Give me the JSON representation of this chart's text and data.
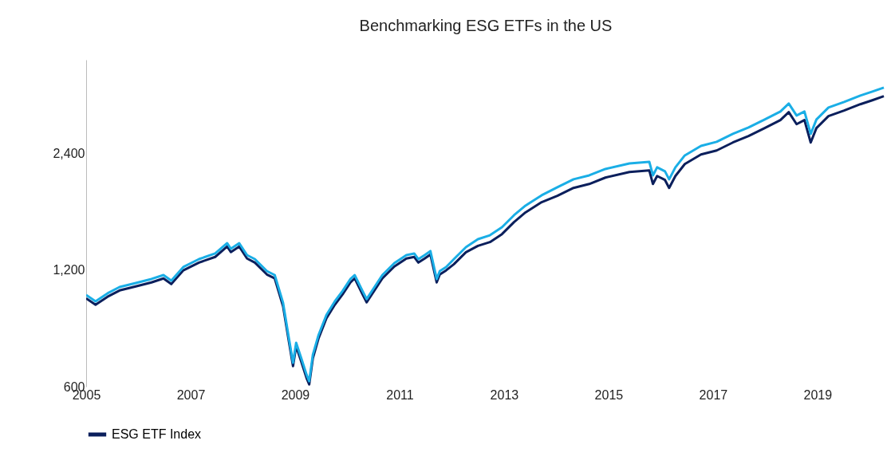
{
  "chart_data": {
    "type": "line",
    "title": "Benchmarking ESG ETFs in the US",
    "x": [
      2005.0,
      2005.18,
      2005.41,
      2005.64,
      2005.95,
      2006.25,
      2006.48,
      2006.63,
      2006.86,
      2007.16,
      2007.47,
      2007.7,
      2007.77,
      2007.93,
      2008.08,
      2008.23,
      2008.46,
      2008.61,
      2008.77,
      2008.87,
      2008.96,
      2009.02,
      2009.12,
      2009.22,
      2009.27,
      2009.34,
      2009.45,
      2009.6,
      2009.76,
      2009.91,
      2010.06,
      2010.14,
      2010.29,
      2010.37,
      2010.52,
      2010.67,
      2010.9,
      2011.13,
      2011.28,
      2011.36,
      2011.48,
      2011.59,
      2011.71,
      2011.77,
      2011.89,
      2012.04,
      2012.27,
      2012.5,
      2012.73,
      2012.96,
      2013.19,
      2013.41,
      2013.72,
      2014.02,
      2014.33,
      2014.63,
      2014.94,
      2015.4,
      2015.78,
      2015.85,
      2015.93,
      2016.08,
      2016.16,
      2016.28,
      2016.46,
      2016.77,
      2017.07,
      2017.38,
      2017.68,
      2017.99,
      2018.29,
      2018.45,
      2018.6,
      2018.75,
      2018.87,
      2018.98,
      2019.21,
      2019.51,
      2019.82,
      2020.05,
      2020.27
    ],
    "series": [
      {
        "name": "ESG ETF Index",
        "color": "#0b1f5c",
        "values": [
          1015,
          977,
          1025,
          1064,
          1090,
          1116,
          1143,
          1105,
          1199,
          1256,
          1299,
          1382,
          1337,
          1382,
          1287,
          1256,
          1170,
          1143,
          968,
          801,
          678,
          763,
          695,
          631,
          608,
          711,
          801,
          902,
          977,
          1040,
          1116,
          1143,
          1040,
          991,
          1064,
          1143,
          1227,
          1287,
          1299,
          1256,
          1287,
          1318,
          1116,
          1170,
          1199,
          1244,
          1336,
          1387,
          1419,
          1488,
          1598,
          1693,
          1800,
          1868,
          1959,
          2005,
          2083,
          2154,
          2175,
          2005,
          2103,
          2054,
          1959,
          2103,
          2258,
          2390,
          2448,
          2567,
          2667,
          2797,
          2933,
          3076,
          2863,
          2933,
          2567,
          2797,
          3003,
          3105,
          3224,
          3301,
          3381
        ]
      },
      {
        "color": "#1aaee6",
        "values": [
          1036,
          997,
          1046,
          1086,
          1112,
          1139,
          1166,
          1128,
          1223,
          1282,
          1326,
          1410,
          1364,
          1410,
          1313,
          1282,
          1194,
          1166,
          988,
          817,
          692,
          779,
          709,
          644,
          620,
          726,
          817,
          920,
          997,
          1061,
          1139,
          1166,
          1061,
          1011,
          1086,
          1166,
          1252,
          1313,
          1326,
          1282,
          1313,
          1345,
          1139,
          1194,
          1223,
          1282,
          1377,
          1444,
          1478,
          1550,
          1665,
          1763,
          1875,
          1966,
          2062,
          2111,
          2193,
          2267,
          2289,
          2111,
          2214,
          2162,
          2062,
          2214,
          2377,
          2516,
          2577,
          2702,
          2807,
          2944,
          3087,
          3238,
          3014,
          3087,
          2702,
          2944,
          3161,
          3268,
          3394,
          3475,
          3559
        ]
      }
    ],
    "xlim": [
      2005,
      2020.3
    ],
    "xticks": [
      2005,
      2007,
      2009,
      2011,
      2013,
      2015,
      2017,
      2019
    ],
    "ylim": [
      600,
      4200
    ],
    "yticks": [
      600,
      {
        "value": 1200,
        "label": "1,200"
      },
      {
        "value": 2400,
        "label": "2,400"
      }
    ],
    "log": true,
    "grid": false,
    "legend": "bottom",
    "marker": "none",
    "line_style": "solid"
  }
}
